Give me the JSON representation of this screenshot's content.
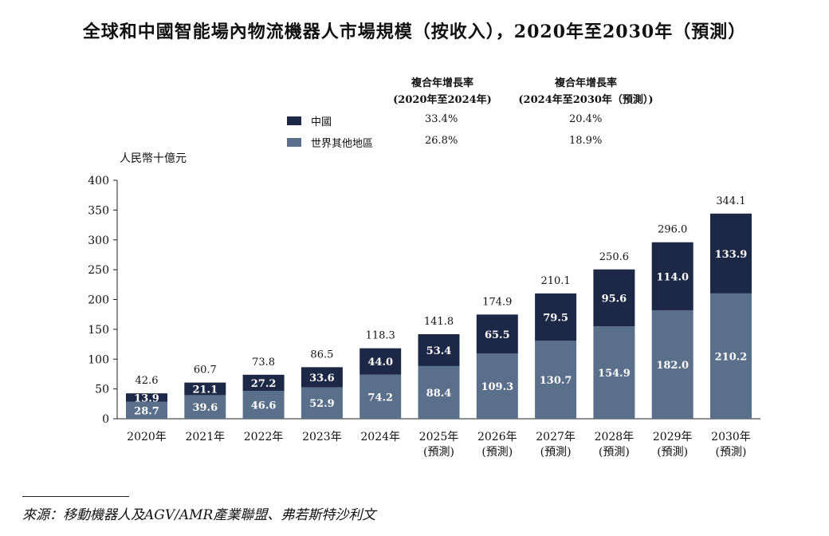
{
  "title": "全球和中國智能場內物流機器人市場規模（按收入），2020年至2030年（預測）",
  "cagr_table": {
    "col1_header": [
      "複合年增長率",
      "(2020年至2024年)"
    ],
    "col2_header": [
      "複合年增長率",
      "(2024年至2030年（預測）)"
    ],
    "rows": [
      {
        "label": "中國",
        "color": "#1c2846",
        "cagr1": "33.4%",
        "cagr2": "20.4%"
      },
      {
        "label": "世界其他地區",
        "color": "#5a6f8a",
        "cagr1": "26.8%",
        "cagr2": "18.9%"
      }
    ]
  },
  "y_axis_label": "人民幣十億元",
  "source": "來源：移動機器人及AGV/AMR產業聯盟、弗若斯特沙利文",
  "chart_data": {
    "type": "bar",
    "stacked": true,
    "categories": [
      "2020年",
      "2021年",
      "2022年",
      "2023年",
      "2024年",
      "2025年\n(預測)",
      "2026年\n(預測)",
      "2027年\n(預測)",
      "2028年\n(預測)",
      "2029年\n(預測)",
      "2030年\n(預測)"
    ],
    "series": [
      {
        "name": "世界其他地區",
        "color": "#5a6f8a",
        "values": [
          28.7,
          39.6,
          46.6,
          52.9,
          74.2,
          88.4,
          109.3,
          130.7,
          154.9,
          182.0,
          210.2
        ],
        "labels": [
          "28.7",
          "39.6",
          "46.6",
          "52.9",
          "74.2",
          "88.4",
          "109.3",
          "130.7",
          "154.9",
          "182.0",
          "210.2"
        ]
      },
      {
        "name": "中國",
        "color": "#1c2846",
        "values": [
          13.9,
          21.1,
          27.2,
          33.6,
          44.0,
          53.4,
          65.5,
          79.5,
          95.6,
          114.0,
          133.9
        ],
        "labels": [
          "13.9",
          "21.1",
          "27.2",
          "33.6",
          "44.0",
          "53.4",
          "65.5",
          "79.5",
          "95.6",
          "114.0",
          "133.9"
        ]
      }
    ],
    "totals": [
      42.6,
      60.7,
      73.8,
      86.5,
      118.3,
      141.8,
      174.9,
      210.1,
      250.6,
      296.0,
      344.1
    ],
    "total_labels": [
      "42.6",
      "60.7",
      "73.8",
      "86.5",
      "118.3",
      "141.8",
      "174.9",
      "210.1",
      "250.6",
      "296.0",
      "344.1"
    ],
    "ylim": [
      0,
      400
    ],
    "yticks": [
      0,
      50,
      100,
      150,
      200,
      250,
      300,
      350,
      400
    ],
    "ytick_labels": [
      "0",
      "50",
      "100",
      "150",
      "200",
      "250",
      "300",
      "350",
      "400"
    ],
    "ylabel": "人民幣十億元",
    "grid": false
  }
}
